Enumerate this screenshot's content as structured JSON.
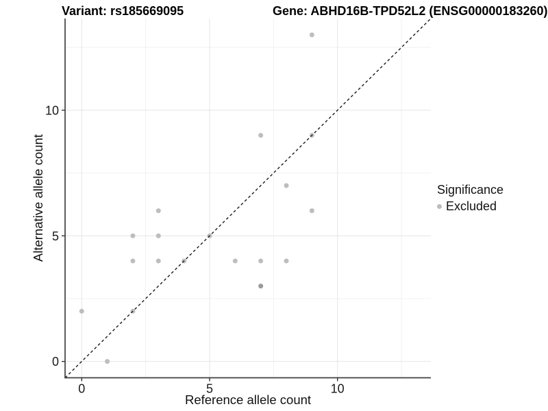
{
  "titles": {
    "variant": "Variant: rs185669095",
    "gene": "Gene: ABHD16B-TPD52L2 (ENSG00000183260)"
  },
  "chart_data": {
    "type": "scatter",
    "title": "Variant: rs185669095",
    "subtitle": "Gene: ABHD16B-TPD52L2 (ENSG00000183260)",
    "xlabel": "Reference allele count",
    "ylabel": "Alternative allele count",
    "xlim": [
      -0.65,
      13.65
    ],
    "ylim": [
      -0.65,
      13.65
    ],
    "xticks": [
      0,
      5,
      10
    ],
    "yticks": [
      0,
      5,
      10
    ],
    "minor_breaks": [
      2.5,
      7.5,
      12.5
    ],
    "grid": true,
    "points": [
      [
        0,
        2
      ],
      [
        1,
        0
      ],
      [
        2,
        2
      ],
      [
        2,
        4
      ],
      [
        2,
        5
      ],
      [
        3,
        4
      ],
      [
        3,
        5
      ],
      [
        3,
        6
      ],
      [
        4,
        4
      ],
      [
        5,
        5
      ],
      [
        6,
        4
      ],
      [
        7,
        3
      ],
      [
        7,
        4
      ],
      [
        7,
        9
      ],
      [
        8,
        4
      ],
      [
        8,
        7
      ],
      [
        9,
        6
      ],
      [
        9,
        9
      ],
      [
        9,
        13
      ]
    ],
    "darker_points": [
      [
        7,
        3
      ]
    ],
    "point_color": "#bdbdbd",
    "point_color_overlap": "#9a9a9a",
    "identity_line": {
      "style": "dashed",
      "color": "#1a1a1a",
      "from": "bottom-left",
      "to": "top-right"
    },
    "grid_major_color": "#e4e4e4",
    "grid_minor_color": "#f1f1f1",
    "axis_line_color": "#3f3f3f",
    "tick_text_color": "#1a1a1a",
    "legend": {
      "title": "Significance",
      "position": "right",
      "items": [
        {
          "label": "Excluded",
          "color": "#bcbcbc"
        }
      ]
    }
  }
}
